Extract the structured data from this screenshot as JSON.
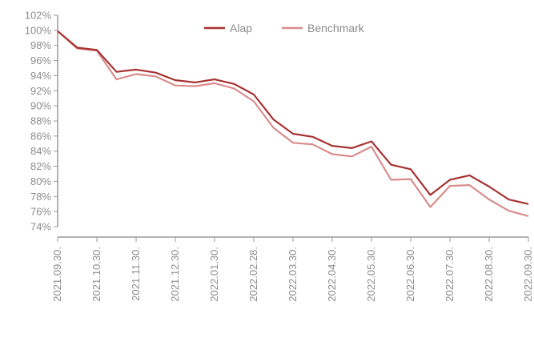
{
  "chart_data": {
    "type": "line",
    "title": "",
    "xlabel": "",
    "ylabel": "",
    "ylim": [
      74,
      102
    ],
    "grid": false,
    "legend_position": "top-center",
    "y_ticks": [
      "102%",
      "100%",
      "98%",
      "96%",
      "94%",
      "92%",
      "90%",
      "88%",
      "86%",
      "84%",
      "82%",
      "80%",
      "78%",
      "76%",
      "74%"
    ],
    "x_ticks": [
      "2021.09.30.",
      "2021.10.30.",
      "2021.11.30.",
      "2021.12.30.",
      "2022.01.30.",
      "2022.02.28.",
      "2022.03.30.",
      "2022.04.30.",
      "2022.05.30.",
      "2022.06.30.",
      "2022.07.30.",
      "2022.08.30.",
      "2022.09.30."
    ],
    "x": [
      "2021.09.30.",
      "2021.10.15.",
      "2021.10.30.",
      "2021.11.15.",
      "2021.11.30.",
      "2021.12.15.",
      "2021.12.30.",
      "2022.01.15.",
      "2022.01.30.",
      "2022.02.15.",
      "2022.02.28.",
      "2022.03.15.",
      "2022.03.30.",
      "2022.04.15.",
      "2022.04.30.",
      "2022.05.15.",
      "2022.05.30.",
      "2022.06.15.",
      "2022.06.30.",
      "2022.07.15.",
      "2022.07.30.",
      "2022.08.15.",
      "2022.08.30.",
      "2022.09.15.",
      "2022.09.30."
    ],
    "series": [
      {
        "name": "Alap",
        "color": "#a83232",
        "values": [
          99.9,
          97.7,
          97.4,
          94.5,
          94.8,
          94.4,
          93.4,
          93.1,
          93.5,
          92.9,
          91.5,
          88.2,
          86.3,
          85.9,
          84.7,
          84.4,
          85.3,
          82.2,
          81.6,
          78.2,
          80.2,
          80.8,
          79.3,
          77.6,
          77.0
        ]
      },
      {
        "name": "Benchmark",
        "color": "#d98c8c",
        "values": [
          99.9,
          97.6,
          97.3,
          93.5,
          94.2,
          93.9,
          92.7,
          92.6,
          93.0,
          92.3,
          90.6,
          87.1,
          85.1,
          84.9,
          83.6,
          83.3,
          84.6,
          80.2,
          80.3,
          76.6,
          79.4,
          79.5,
          77.6,
          76.1,
          75.4
        ]
      }
    ]
  }
}
